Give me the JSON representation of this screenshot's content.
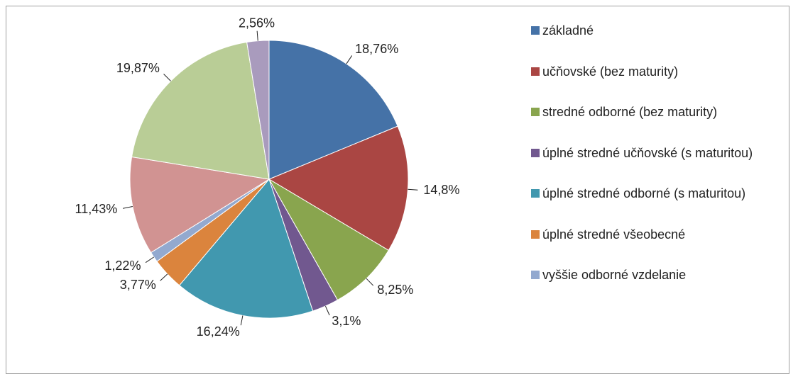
{
  "chart_data": {
    "type": "pie",
    "categories": [
      "základné",
      "učňovské (bez maturity)",
      "stredné odborné (bez maturity)",
      "úplné stredné učňovské (s maturitou)",
      "úplné stredné odborné (s maturitou)",
      "úplné stredné všeobecné",
      "vyššie odborné vzdelanie",
      null,
      null,
      null
    ],
    "values": [
      18.76,
      14.8,
      8.25,
      3.1,
      16.24,
      3.77,
      1.22,
      11.43,
      19.87,
      2.56
    ],
    "value_labels": [
      "18,76%",
      "14,8%",
      "8,25%",
      "3,1%",
      "16,24%",
      "3,77%",
      "1,22%",
      "11,43%",
      "19,87%",
      "2,56%"
    ],
    "colors": [
      "#4572a7",
      "#aa4643",
      "#89a54e",
      "#71588f",
      "#4198af",
      "#db843d",
      "#93a9cf",
      "#d19392",
      "#b9cd96",
      "#a99bbd"
    ],
    "legend": "right"
  }
}
